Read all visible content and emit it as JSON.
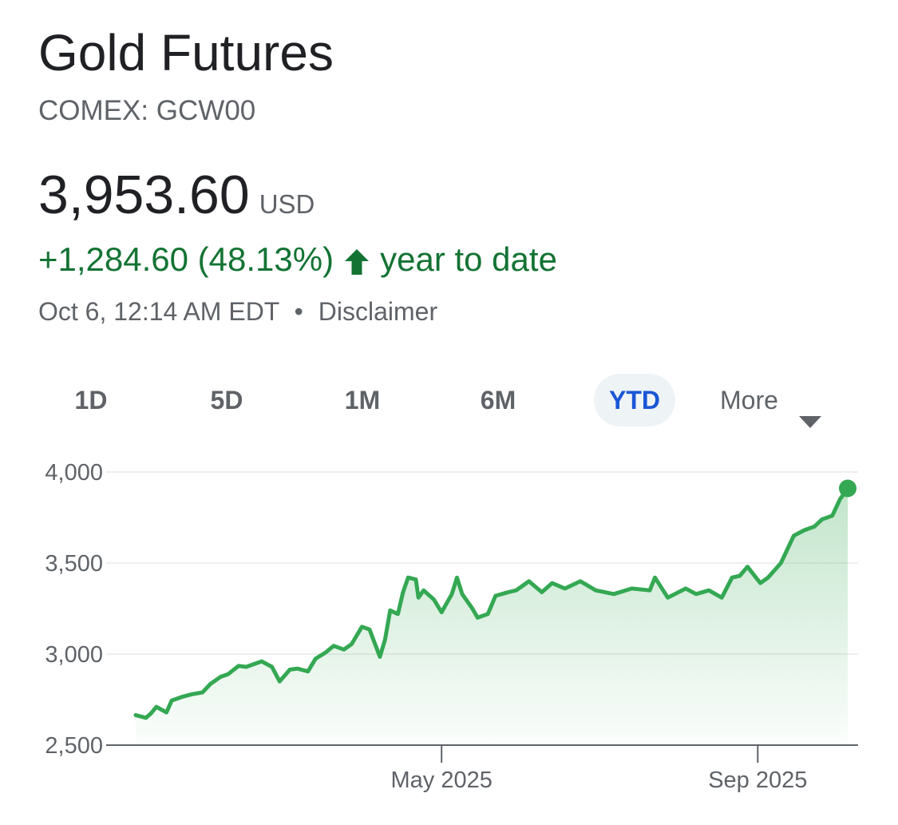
{
  "header": {
    "title": "Gold Futures",
    "exchange": "COMEX: GCW00"
  },
  "quote": {
    "price": "3,953.60",
    "currency": "USD",
    "change": "+1,284.60 (48.13%)",
    "change_period": "year to date",
    "timestamp": "Oct 6, 12:14 AM EDT",
    "separator": "•",
    "disclaimer": "Disclaimer"
  },
  "range_tabs": [
    {
      "label": "1D",
      "active": false
    },
    {
      "label": "5D",
      "active": false
    },
    {
      "label": "1M",
      "active": false
    },
    {
      "label": "6M",
      "active": false
    },
    {
      "label": "YTD",
      "active": true
    }
  ],
  "more_label": "More",
  "icons": {
    "change_arrow": "arrow-up-icon",
    "more_caret": "caret-down-icon"
  },
  "colors": {
    "line": "#34a853",
    "positive": "#137333",
    "active_tab": "#1a57d6"
  },
  "chart_data": {
    "type": "area",
    "title": "",
    "xlabel": "",
    "ylabel": "",
    "ylim": [
      2500,
      4000
    ],
    "yticks": [
      "4,000",
      "3,500",
      "3,000",
      "2,500"
    ],
    "ytick_values": [
      4000,
      3500,
      3000,
      2500
    ],
    "xticks": [
      {
        "label": "May 2025",
        "date": "2025-05-01"
      },
      {
        "label": "Sep 2025",
        "date": "2025-09-01"
      }
    ],
    "xlim": [
      "2025-01-02",
      "2025-10-06"
    ],
    "grid": true,
    "series": [
      {
        "x": [
          "2025-01-02",
          "2025-01-06",
          "2025-01-08",
          "2025-01-10",
          "2025-01-14",
          "2025-01-16",
          "2025-01-20",
          "2025-01-24",
          "2025-01-28",
          "2025-01-31",
          "2025-02-04",
          "2025-02-07",
          "2025-02-11",
          "2025-02-14",
          "2025-02-18",
          "2025-02-20",
          "2025-02-24",
          "2025-02-27",
          "2025-03-03",
          "2025-03-06",
          "2025-03-10",
          "2025-03-13",
          "2025-03-17",
          "2025-03-20",
          "2025-03-24",
          "2025-03-27",
          "2025-03-31",
          "2025-04-03",
          "2025-04-07",
          "2025-04-09",
          "2025-04-11",
          "2025-04-14",
          "2025-04-16",
          "2025-04-18",
          "2025-04-21",
          "2025-04-22",
          "2025-04-24",
          "2025-04-28",
          "2025-05-01",
          "2025-05-05",
          "2025-05-07",
          "2025-05-09",
          "2025-05-13",
          "2025-05-15",
          "2025-05-19",
          "2025-05-22",
          "2025-05-27",
          "2025-05-30",
          "2025-06-04",
          "2025-06-09",
          "2025-06-13",
          "2025-06-18",
          "2025-06-24",
          "2025-06-30",
          "2025-07-07",
          "2025-07-14",
          "2025-07-21",
          "2025-07-23",
          "2025-07-28",
          "2025-08-04",
          "2025-08-08",
          "2025-08-13",
          "2025-08-18",
          "2025-08-22",
          "2025-08-25",
          "2025-08-28",
          "2025-09-02",
          "2025-09-05",
          "2025-09-10",
          "2025-09-15",
          "2025-09-19",
          "2025-09-23",
          "2025-09-26",
          "2025-09-30",
          "2025-10-03",
          "2025-10-06"
        ],
        "values": [
          2665,
          2650,
          2675,
          2710,
          2680,
          2745,
          2765,
          2780,
          2790,
          2835,
          2875,
          2890,
          2935,
          2930,
          2950,
          2960,
          2930,
          2850,
          2915,
          2920,
          2905,
          2975,
          3010,
          3045,
          3025,
          3055,
          3150,
          3135,
          2985,
          3080,
          3240,
          3220,
          3340,
          3420,
          3410,
          3310,
          3350,
          3300,
          3230,
          3330,
          3420,
          3330,
          3250,
          3200,
          3220,
          3320,
          3340,
          3350,
          3400,
          3340,
          3390,
          3360,
          3400,
          3350,
          3330,
          3360,
          3350,
          3420,
          3310,
          3360,
          3330,
          3350,
          3310,
          3420,
          3430,
          3480,
          3390,
          3420,
          3500,
          3650,
          3680,
          3700,
          3740,
          3760,
          3850,
          3910
        ]
      }
    ]
  }
}
